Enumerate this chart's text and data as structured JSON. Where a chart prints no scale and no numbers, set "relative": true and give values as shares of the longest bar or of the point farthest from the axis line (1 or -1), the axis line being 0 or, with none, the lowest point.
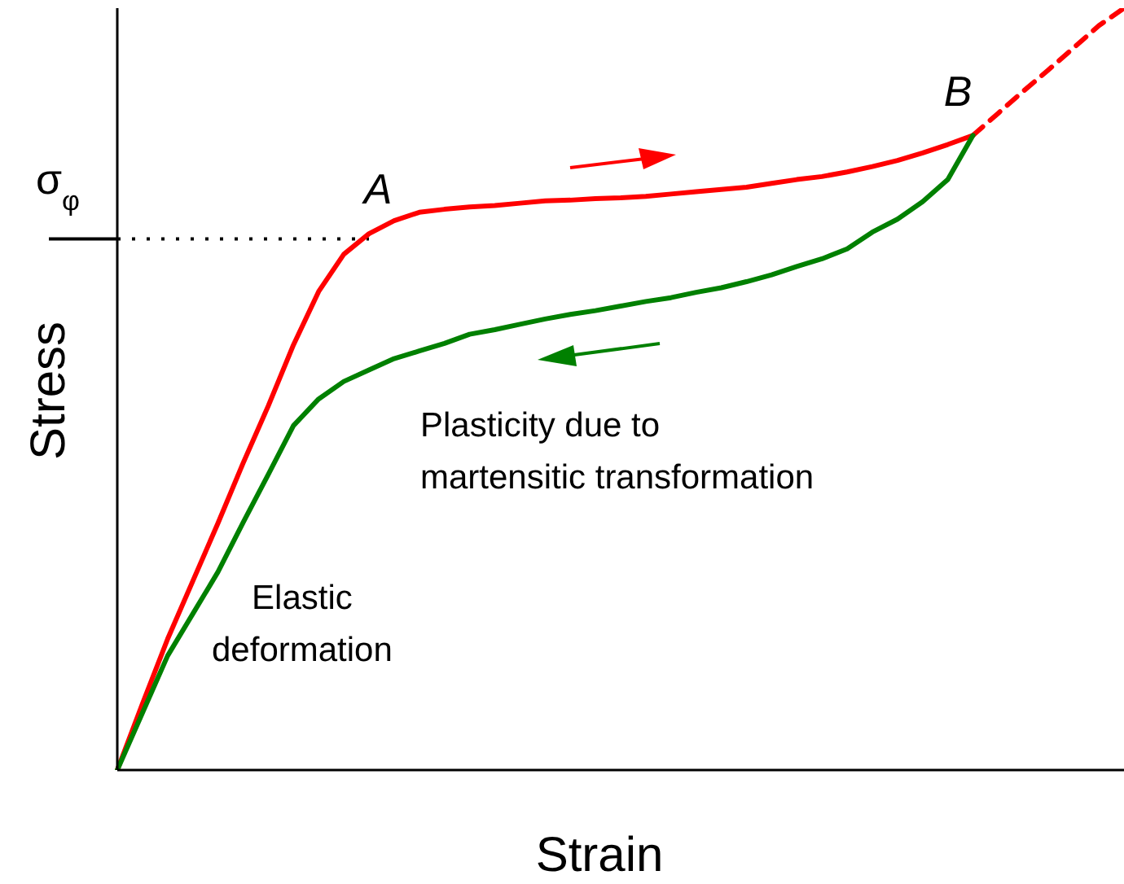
{
  "chart_data": {
    "type": "line",
    "relative": true,
    "xlabel": "Strain",
    "ylabel": "Stress",
    "marker": "none",
    "categories": [
      null,
      null,
      null,
      null,
      null,
      null,
      null,
      null,
      null,
      null,
      null,
      null,
      null,
      null,
      null,
      null,
      null,
      null,
      null,
      null,
      null,
      null,
      null,
      null,
      null,
      null,
      null,
      null,
      null,
      null,
      null,
      null,
      null,
      null,
      null,
      null,
      null,
      null,
      null,
      null,
      null
    ],
    "series": [
      {
        "color": "#ff0000",
        "line_style": "solid",
        "values": [
          0,
          0.087,
          0.172,
          0.248,
          0.324,
          0.403,
          0.478,
          0.558,
          0.628,
          0.677,
          0.704,
          0.721,
          0.732,
          0.736,
          0.739,
          0.741,
          0.744,
          0.747,
          0.748,
          0.75,
          0.751,
          0.753,
          0.756,
          0.759,
          0.762,
          0.765,
          0.77,
          0.775,
          0.779,
          0.785,
          0.792,
          0.8,
          0.81,
          0.821,
          0.833,
          null,
          null,
          null,
          null,
          null,
          null
        ]
      },
      {
        "color": "#ff0000",
        "line_style": "dashed",
        "values": [
          null,
          null,
          null,
          null,
          null,
          null,
          null,
          null,
          null,
          null,
          null,
          null,
          null,
          null,
          null,
          null,
          null,
          null,
          null,
          null,
          null,
          null,
          null,
          null,
          null,
          null,
          null,
          null,
          null,
          null,
          null,
          null,
          null,
          null,
          0.833,
          0.862,
          0.891,
          0.919,
          0.948,
          0.977,
          1
        ]
      },
      {
        "color": "#008000",
        "line_style": "solid",
        "values": [
          0,
          0.075,
          0.15,
          0.205,
          0.26,
          0.325,
          0.388,
          0.452,
          0.487,
          0.51,
          0.525,
          0.54,
          0.55,
          0.56,
          0.572,
          0.578,
          0.585,
          0.592,
          0.598,
          0.603,
          0.609,
          0.615,
          0.62,
          0.627,
          0.633,
          0.641,
          0.65,
          0.661,
          0.671,
          0.684,
          0.706,
          0.723,
          0.746,
          0.775,
          0.833,
          null,
          null,
          null,
          null,
          null,
          null
        ]
      }
    ],
    "ref_lines": [
      {
        "axis": "y",
        "value": 0.697,
        "label": "σ$_{φ}$",
        "line_style": "dotted",
        "color": "#000000"
      }
    ],
    "annotations": [
      "A",
      "B",
      "Plasticity due to\nmartensitic transformation",
      "Elastic\ndeformation"
    ]
  }
}
